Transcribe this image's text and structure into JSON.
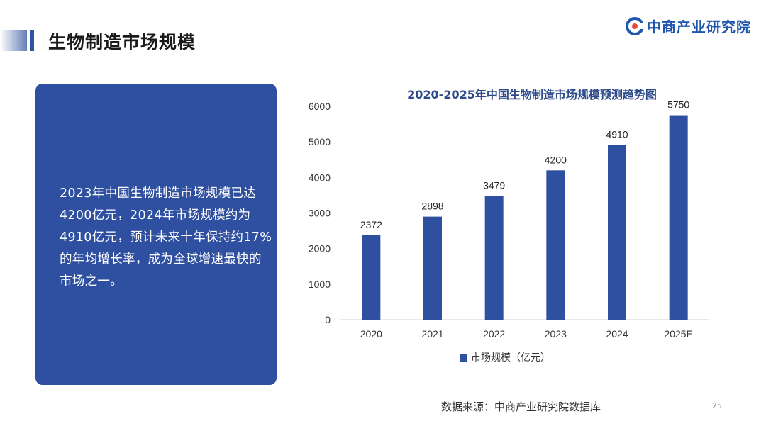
{
  "header": {
    "title": "生物制造市场规模",
    "brand": "中商产业研究院"
  },
  "summary": {
    "text": "2023年中国生物制造市场规模已达4200亿元，2024年市场规模约为4910亿元，预计未来十年保持约17%的年均增长率，成为全球增速最快的市场之一。"
  },
  "footer": {
    "source": "数据来源：中商产业研究院数据库",
    "page_number": "25"
  },
  "colors": {
    "bar": "#2f4fa0",
    "title": "#2d4a8a",
    "brand": "#1f56b0"
  },
  "chart_data": {
    "type": "bar",
    "title": "2020-2025年中国生物制造市场规模预测趋势图",
    "categories": [
      "2020",
      "2021",
      "2022",
      "2023",
      "2024",
      "2025E"
    ],
    "series": [
      {
        "name": "市场规模（亿元）",
        "values": [
          2372,
          2898,
          3479,
          4200,
          4910,
          5750
        ]
      }
    ],
    "data_labels": [
      "2372",
      "2898",
      "3479",
      "4200",
      "4910",
      "5750"
    ],
    "yticks": [
      "0",
      "1000",
      "2000",
      "3000",
      "4000",
      "5000",
      "6000"
    ],
    "ylim": [
      0,
      6000
    ],
    "grid": false,
    "legend_position": "bottom"
  }
}
